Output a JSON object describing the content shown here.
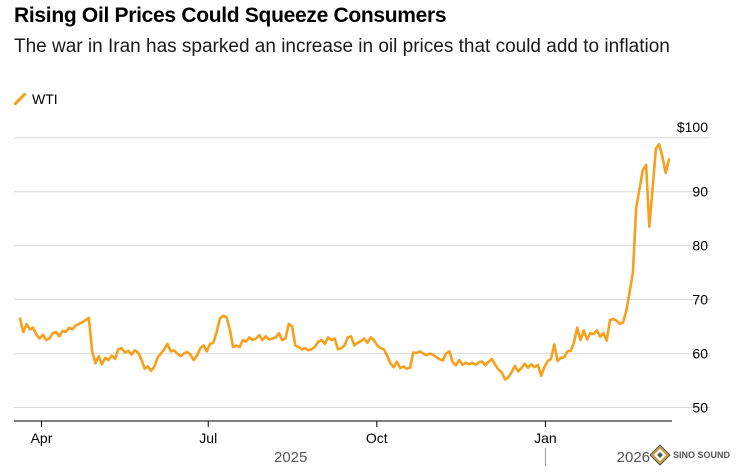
{
  "header": {
    "title": "Rising Oil Prices Could Squeeze Consumers",
    "subtitle": "The war in Iran has sparked an increase in oil prices that could add to inflation"
  },
  "legend": {
    "label": "WTI",
    "color": "#f7a01e"
  },
  "watermark": {
    "text": "SINO SOUND"
  },
  "chart_data": {
    "type": "line",
    "title": "Rising Oil Prices Could Squeeze Consumers",
    "series": [
      {
        "name": "WTI",
        "color": "#f7a01e",
        "values": [
          66.5,
          64.0,
          65.5,
          64.5,
          64.8,
          63.5,
          62.8,
          63.5,
          62.5,
          62.8,
          63.8,
          64.0,
          63.2,
          64.2,
          64.0,
          64.8,
          64.5,
          65.2,
          65.5,
          65.8,
          66.2,
          66.6,
          60.5,
          58.2,
          59.5,
          58.0,
          59.2,
          58.8,
          59.6,
          59.0,
          60.8,
          61.0,
          60.2,
          60.5,
          59.8,
          60.6,
          60.2,
          59.0,
          57.2,
          57.6,
          56.8,
          57.6,
          59.3,
          60.0,
          60.8,
          61.8,
          60.4,
          60.6,
          60.0,
          59.5,
          60.0,
          60.3,
          59.8,
          58.8,
          59.6,
          61.0,
          61.5,
          60.4,
          61.8,
          62.0,
          64.0,
          66.5,
          67.0,
          66.8,
          64.5,
          61.2,
          61.5,
          61.2,
          62.5,
          62.2,
          63.0,
          62.5,
          62.8,
          63.4,
          62.5,
          63.2,
          62.6,
          62.8,
          63.0,
          63.8,
          62.5,
          62.8,
          65.5,
          65.0,
          61.5,
          61.2,
          60.8,
          61.0,
          60.6,
          60.8,
          61.3,
          62.2,
          62.5,
          61.8,
          63.0,
          62.5,
          62.8,
          60.8,
          61.0,
          61.5,
          63.0,
          63.2,
          61.5,
          62.0,
          62.3,
          62.8,
          62.0,
          63.0,
          62.5,
          61.5,
          61.0,
          60.8,
          59.6,
          58.2,
          57.5,
          58.5,
          57.3,
          57.6,
          57.2,
          57.4,
          60.2,
          60.1,
          60.4,
          60.0,
          59.7,
          60.0,
          59.8,
          59.3,
          59.0,
          58.7,
          60.0,
          60.4,
          58.4,
          57.8,
          58.8,
          57.9,
          58.3,
          58.0,
          58.3,
          57.9,
          58.4,
          58.5,
          57.8,
          58.5,
          59.0,
          57.9,
          57.0,
          56.5,
          55.2,
          55.6,
          56.6,
          57.7,
          56.7,
          57.3,
          58.1,
          57.4,
          58.0,
          57.5,
          57.9,
          55.9,
          57.5,
          58.6,
          59.0,
          61.7,
          58.6,
          59.2,
          59.3,
          60.4,
          60.5,
          62.0,
          64.8,
          62.5,
          64.3,
          62.6,
          63.8,
          63.6,
          64.3,
          63.1,
          63.8,
          62.4,
          66.2,
          66.4,
          66.1,
          65.5,
          65.8,
          68.0,
          71.5,
          75.0,
          87.0,
          90.5,
          94.0,
          95.0,
          83.5,
          90.5,
          98.0,
          98.8,
          96.5,
          93.5,
          96.0
        ]
      }
    ],
    "x_start": "2025-03-17",
    "x_end": "2026-03-10",
    "xticks": [
      {
        "label": "Apr",
        "date": "2025-04-01"
      },
      {
        "label": "Jul",
        "date": "2025-07-01"
      },
      {
        "label": "Oct",
        "date": "2025-10-01"
      },
      {
        "label": "Jan",
        "date": "2026-01-01"
      }
    ],
    "years": [
      {
        "label": "2025",
        "date": "2025-08-15"
      },
      {
        "label": "2026",
        "date": "2026-02-18"
      }
    ],
    "year_divider_date": "2026-01-01",
    "yticks": [
      {
        "value": 100,
        "label": "$100"
      },
      {
        "value": 90,
        "label": "90"
      },
      {
        "value": 80,
        "label": "80"
      },
      {
        "value": 70,
        "label": "70"
      },
      {
        "value": 60,
        "label": "60"
      },
      {
        "value": 50,
        "label": "50"
      }
    ],
    "ylim": [
      47.5,
      102
    ],
    "xlabel": "",
    "ylabel": "",
    "grid": true
  }
}
